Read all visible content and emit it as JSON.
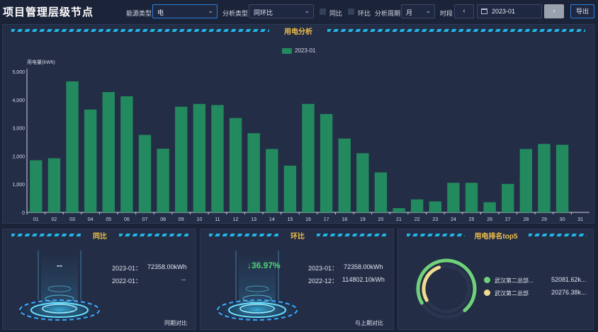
{
  "header": {
    "title": "项目管理层级节点",
    "energy_type_label": "能源类型",
    "energy_type_value": "电",
    "analysis_type_label": "分析类型",
    "analysis_type_value": "同环比",
    "yoy_label": "同比",
    "mom_label": "环比",
    "period_label": "分析周期",
    "period_value": "月",
    "time_label": "时段",
    "prev_icon": "‹",
    "next_icon": "›",
    "date_value": "2023-01",
    "export_label": "导出"
  },
  "analysis_panel": {
    "title": "用电分析",
    "legend": "2023-01"
  },
  "chart_data": {
    "type": "bar",
    "ylabel": "用电量(kWh)",
    "ylim": [
      0,
      5000
    ],
    "yticks": [
      "0",
      "1,000",
      "2,000",
      "3,000",
      "4,000",
      "5,000"
    ],
    "categories": [
      "01",
      "02",
      "03",
      "04",
      "05",
      "06",
      "07",
      "08",
      "09",
      "10",
      "11",
      "12",
      "13",
      "14",
      "15",
      "16",
      "17",
      "18",
      "19",
      "20",
      "21",
      "22",
      "23",
      "24",
      "25",
      "26",
      "27",
      "28",
      "29",
      "30",
      "31"
    ],
    "series": [
      {
        "name": "2023-01",
        "color": "#23895e",
        "values": [
          1850,
          1920,
          4650,
          3650,
          4270,
          4120,
          2750,
          2260,
          3750,
          3850,
          3810,
          3350,
          2810,
          2250,
          1660,
          3850,
          3490,
          2620,
          2100,
          1420,
          150,
          460,
          390,
          1050,
          1050,
          360,
          1010,
          2250,
          2430,
          2400,
          null
        ]
      }
    ],
    "grid": false
  },
  "yoy_panel": {
    "title": "同比",
    "percent": "--",
    "row1_label": "2023-01：",
    "row1_value": "72358.00kWh",
    "row2_label": "2022-01：",
    "row2_value": "--",
    "footer": "同期对比"
  },
  "mom_panel": {
    "title": "环比",
    "arrow": "↓",
    "percent": "36.97%",
    "row1_label": "2023-01：",
    "row1_value": "72358.00kWh",
    "row2_label": "2022-12：",
    "row2_value": "114802.10kWh",
    "footer": "与上期对比"
  },
  "rank_panel": {
    "title": "用电排名top5",
    "items": [
      {
        "name": "武汉第二总部...",
        "value": "52081.62k...",
        "color": "#6fd27a"
      },
      {
        "name": "武汉第二总部",
        "value": "20276.38k...",
        "color": "#f0dc8c"
      }
    ]
  }
}
